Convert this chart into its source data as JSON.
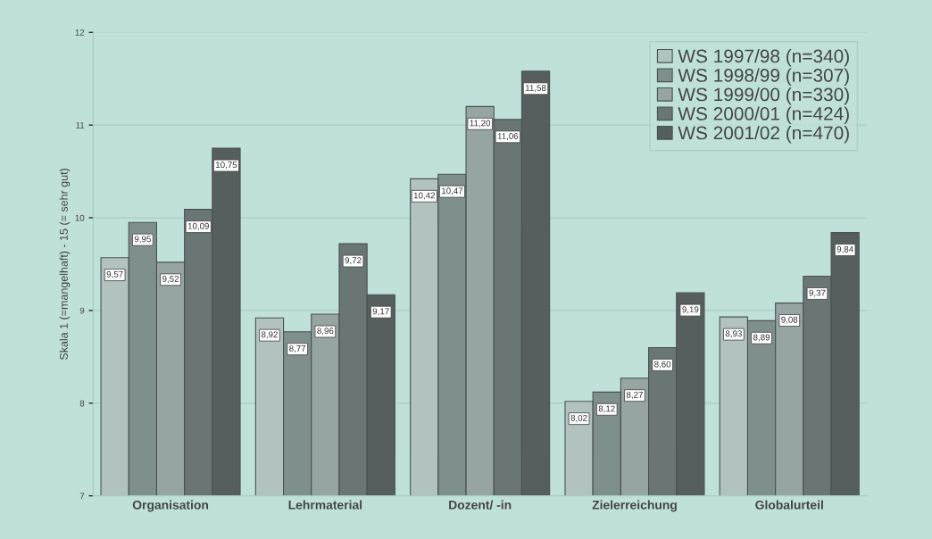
{
  "chart_data": {
    "type": "bar",
    "ylabel": "Skala 1 (=mangelhaft) - 15 (= sehr gut)",
    "categories": [
      "Organisation",
      "Lehrmaterial",
      "Dozent/ -in",
      "Zielerreichung",
      "Globalurteil"
    ],
    "series": [
      {
        "name": "WS 1997/98 (n=340)",
        "color": "#b2c3bf",
        "values": [
          9.57,
          8.92,
          10.42,
          8.02,
          8.93
        ],
        "value_labels": [
          "9,57",
          "8,92",
          "10,42",
          "8,02",
          "8,93"
        ]
      },
      {
        "name": "WS 1998/99 (n=307)",
        "color": "#7f8f8c",
        "values": [
          9.95,
          8.77,
          10.47,
          8.12,
          8.89
        ],
        "value_labels": [
          "9,95",
          "8,77",
          "10,47",
          "8,12",
          "8,89"
        ]
      },
      {
        "name": "WS 1999/00 (n=330)",
        "color": "#96a5a2",
        "values": [
          9.52,
          8.96,
          11.2,
          8.27,
          9.08
        ],
        "value_labels": [
          "9,52",
          "8,96",
          "11,20",
          "8,27",
          "9,08"
        ]
      },
      {
        "name": "WS 2000/01 (n=424)",
        "color": "#6a7674",
        "values": [
          10.09,
          9.72,
          11.06,
          8.6,
          9.37
        ],
        "value_labels": [
          "10,09",
          "9,72",
          "11,06",
          "8,60",
          "9,37"
        ]
      },
      {
        "name": "WS 2001/02 (n=470)",
        "color": "#575f5e",
        "values": [
          10.75,
          9.17,
          11.58,
          9.19,
          9.84
        ],
        "value_labels": [
          "10,75",
          "9,17",
          "11,58",
          "9,19",
          "9,84"
        ]
      }
    ],
    "ylim": [
      7,
      12
    ],
    "yticks": [
      7,
      8,
      9,
      10,
      11,
      12
    ],
    "grid": "y",
    "legend": "top right"
  }
}
